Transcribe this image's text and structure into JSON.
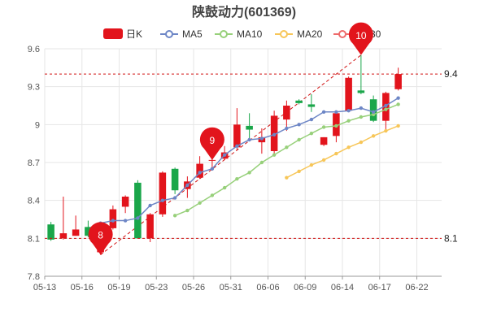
{
  "chart_data": {
    "type": "candlestick",
    "title": "陕鼓动力(601369)",
    "legend": [
      "日K",
      "MA5",
      "MA10",
      "MA20",
      "MA30"
    ],
    "colors": {
      "up": "#e2141c",
      "down": "#1aa64a",
      "ma5": "#6d86c6",
      "ma10": "#97d07a",
      "ma20": "#f7c658",
      "ma30": "#ee6b6b",
      "grid": "#e6e6e6",
      "ref_line": "#d01010",
      "trend_line": "#d01010"
    },
    "ylim": [
      7.8,
      9.6
    ],
    "yticks": [
      "9.6",
      "9.3",
      "9",
      "8.7",
      "8.4",
      "8.1",
      "7.8"
    ],
    "xtick_labels": [
      {
        "label": "05-13",
        "index": 0
      },
      {
        "label": "05-16",
        "index": 3
      },
      {
        "label": "05-19",
        "index": 6
      },
      {
        "label": "05-23",
        "index": 9
      },
      {
        "label": "05-26",
        "index": 12
      },
      {
        "label": "05-31",
        "index": 15
      },
      {
        "label": "06-06",
        "index": 18
      },
      {
        "label": "06-09",
        "index": 21
      },
      {
        "label": "06-14",
        "index": 24
      },
      {
        "label": "06-17",
        "index": 27
      },
      {
        "label": "06-22",
        "index": 30
      }
    ],
    "candles": [
      {
        "o": 8.21,
        "c": 8.09,
        "h": 8.23,
        "l": 8.08
      },
      {
        "o": 8.1,
        "c": 8.14,
        "h": 8.43,
        "l": 8.09
      },
      {
        "o": 8.12,
        "c": 8.17,
        "h": 8.28,
        "l": 8.12
      },
      {
        "o": 8.19,
        "c": 8.12,
        "h": 8.24,
        "l": 8.11
      },
      {
        "o": 7.99,
        "c": 8.12,
        "h": 8.13,
        "l": 7.97
      },
      {
        "o": 8.18,
        "c": 8.33,
        "h": 8.36,
        "l": 8.17
      },
      {
        "o": 8.35,
        "c": 8.43,
        "h": 8.44,
        "l": 8.3
      },
      {
        "o": 8.54,
        "c": 8.1,
        "h": 8.56,
        "l": 8.1
      },
      {
        "o": 8.1,
        "c": 8.29,
        "h": 8.3,
        "l": 8.07
      },
      {
        "o": 8.29,
        "c": 8.62,
        "h": 8.63,
        "l": 8.27
      },
      {
        "o": 8.65,
        "c": 8.48,
        "h": 8.66,
        "l": 8.45
      },
      {
        "o": 8.49,
        "c": 8.55,
        "h": 8.59,
        "l": 8.42
      },
      {
        "o": 8.58,
        "c": 8.69,
        "h": 8.75,
        "l": 8.57
      },
      {
        "o": 8.72,
        "c": 8.72,
        "h": 8.77,
        "l": 8.64
      },
      {
        "o": 8.73,
        "c": 8.78,
        "h": 8.83,
        "l": 8.72
      },
      {
        "o": 8.82,
        "c": 9.0,
        "h": 9.13,
        "l": 8.8
      },
      {
        "o": 8.99,
        "c": 8.96,
        "h": 9.09,
        "l": 8.87
      },
      {
        "o": 8.86,
        "c": 8.9,
        "h": 8.97,
        "l": 8.77
      },
      {
        "o": 8.79,
        "c": 9.07,
        "h": 9.11,
        "l": 8.77
      },
      {
        "o": 9.04,
        "c": 9.15,
        "h": 9.19,
        "l": 8.95
      },
      {
        "o": 9.19,
        "c": 9.17,
        "h": 9.2,
        "l": 9.16
      },
      {
        "o": 9.16,
        "c": 9.14,
        "h": 9.24,
        "l": 9.1
      },
      {
        "o": 8.84,
        "c": 8.9,
        "h": 8.9,
        "l": 8.83
      },
      {
        "o": 8.91,
        "c": 9.09,
        "h": 9.11,
        "l": 8.86
      },
      {
        "o": 9.11,
        "c": 9.37,
        "h": 9.38,
        "l": 9.1
      },
      {
        "o": 9.27,
        "c": 9.25,
        "h": 9.55,
        "l": 9.24
      },
      {
        "o": 9.2,
        "c": 9.03,
        "h": 9.23,
        "l": 9.02
      },
      {
        "o": 9.03,
        "c": 9.25,
        "h": 9.26,
        "l": 8.96
      },
      {
        "o": 9.28,
        "c": 9.4,
        "h": 9.45,
        "l": 9.27
      }
    ],
    "candle_index_offset": 0,
    "ma5": [
      8.22,
      8.24,
      8.24,
      8.26,
      8.36,
      8.4,
      8.42,
      8.52,
      8.62,
      8.65,
      8.76,
      8.83,
      8.88,
      8.89,
      8.92,
      8.97,
      9.0,
      9.04,
      9.1,
      9.1,
      9.11,
      9.13,
      9.1,
      9.15,
      9.21
    ],
    "ma5_start": 4,
    "ma10": [
      8.28,
      8.32,
      8.38,
      8.44,
      8.5,
      8.57,
      8.62,
      8.7,
      8.76,
      8.82,
      8.88,
      8.93,
      8.98,
      8.99,
      9.03,
      9.06,
      9.08,
      9.12,
      9.16
    ],
    "ma10_start": 10,
    "ma20": [
      8.58,
      8.63,
      8.68,
      8.72,
      8.77,
      8.82,
      8.86,
      8.91,
      8.95,
      8.99
    ],
    "ma20_start": 19,
    "annotations": [
      {
        "label": "8",
        "index": 4,
        "value": 7.97
      },
      {
        "label": "9",
        "index": 13,
        "value": 8.72
      },
      {
        "label": "10",
        "index": 25,
        "value": 9.55
      }
    ],
    "ref_lines": [
      {
        "value": 9.4,
        "label": "9.4"
      },
      {
        "value": 8.1,
        "label": "8.1"
      }
    ],
    "trend_line": {
      "from": {
        "index": 4,
        "value": 7.97
      },
      "to": {
        "index": 25,
        "value": 9.55
      }
    }
  }
}
